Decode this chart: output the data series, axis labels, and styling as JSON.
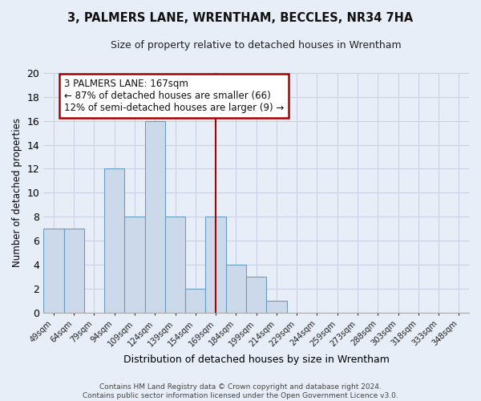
{
  "title": "3, PALMERS LANE, WRENTHAM, BECCLES, NR34 7HA",
  "subtitle": "Size of property relative to detached houses in Wrentham",
  "xlabel": "Distribution of detached houses by size in Wrentham",
  "ylabel": "Number of detached properties",
  "categories": [
    "49sqm",
    "64sqm",
    "79sqm",
    "94sqm",
    "109sqm",
    "124sqm",
    "139sqm",
    "154sqm",
    "169sqm",
    "184sqm",
    "199sqm",
    "214sqm",
    "229sqm",
    "244sqm",
    "259sqm",
    "273sqm",
    "288sqm",
    "303sqm",
    "318sqm",
    "333sqm",
    "348sqm"
  ],
  "values": [
    7,
    7,
    0,
    12,
    8,
    16,
    8,
    2,
    8,
    4,
    3,
    1,
    0,
    0,
    0,
    0,
    0,
    0,
    0,
    0,
    0
  ],
  "bar_color": "#ccd9ea",
  "bar_edge_color": "#6a9cc0",
  "property_line_index": 8,
  "property_line_color": "#aa0000",
  "ylim": [
    0,
    20
  ],
  "yticks": [
    0,
    2,
    4,
    6,
    8,
    10,
    12,
    14,
    16,
    18,
    20
  ],
  "annotation_title": "3 PALMERS LANE: 167sqm",
  "annotation_line1": "← 87% of detached houses are smaller (66)",
  "annotation_line2": "12% of semi-detached houses are larger (9) →",
  "annotation_box_color": "#ffffff",
  "annotation_border_color": "#aa0000",
  "grid_color": "#c4cfe0",
  "background_color": "#e8eef7",
  "footer_line1": "Contains HM Land Registry data © Crown copyright and database right 2024.",
  "footer_line2": "Contains public sector information licensed under the Open Government Licence v3.0."
}
